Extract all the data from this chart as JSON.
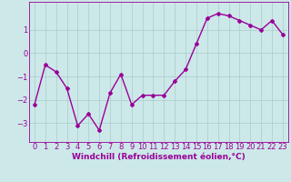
{
  "x": [
    0,
    1,
    2,
    3,
    4,
    5,
    6,
    7,
    8,
    9,
    10,
    11,
    12,
    13,
    14,
    15,
    16,
    17,
    18,
    19,
    20,
    21,
    22,
    23
  ],
  "y": [
    -2.2,
    -0.5,
    -0.8,
    -1.5,
    -3.1,
    -2.6,
    -3.3,
    -1.7,
    -0.9,
    -2.2,
    -1.8,
    -1.8,
    -1.8,
    -1.2,
    -0.7,
    0.4,
    1.5,
    1.7,
    1.6,
    1.4,
    1.2,
    1.0,
    1.4,
    0.8
  ],
  "line_color": "#990099",
  "marker": "D",
  "marker_size": 2,
  "bg_color": "#cce8e8",
  "grid_color": "#aacccc",
  "xlabel": "Windchill (Refroidissement éolien,°C)",
  "xlim": [
    -0.5,
    23.5
  ],
  "ylim": [
    -3.8,
    2.2
  ],
  "yticks": [
    -3,
    -2,
    -1,
    0,
    1
  ],
  "xticks": [
    0,
    1,
    2,
    3,
    4,
    5,
    6,
    7,
    8,
    9,
    10,
    11,
    12,
    13,
    14,
    15,
    16,
    17,
    18,
    19,
    20,
    21,
    22,
    23
  ],
  "xlabel_fontsize": 6.5,
  "tick_fontsize": 6,
  "line_width": 1.0
}
